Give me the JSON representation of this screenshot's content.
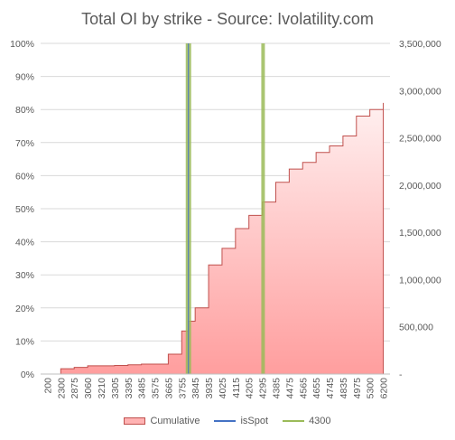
{
  "chart_data": {
    "type": "area",
    "title": "Total OI by strike - Source: Ivolatility.com",
    "y_left_ticks": [
      "0%",
      "10%",
      "20%",
      "30%",
      "40%",
      "50%",
      "60%",
      "70%",
      "80%",
      "90%",
      "100%"
    ],
    "y_right_ticks": [
      "-",
      "500,000",
      "1,000,000",
      "1,500,000",
      "2,000,000",
      "2,500,000",
      "3,000,000",
      "3,500,000"
    ],
    "y_left_lim": [
      0,
      1
    ],
    "y_right_lim": [
      0,
      3500000
    ],
    "x_ticks": [
      "200",
      "2300",
      "2875",
      "3060",
      "3210",
      "3305",
      "3395",
      "3485",
      "3575",
      "3665",
      "3755",
      "3845",
      "3935",
      "4025",
      "4115",
      "4205",
      "4295",
      "4385",
      "4475",
      "4565",
      "4655",
      "4745",
      "4835",
      "4975",
      "5300",
      "6200"
    ],
    "series": [
      {
        "name": "Cumulative",
        "color": "#c0504d",
        "fill": "#ffb3b3",
        "x": [
          "200",
          "2300",
          "2875",
          "3060",
          "3210",
          "3305",
          "3395",
          "3485",
          "3575",
          "3665",
          "3755",
          "3800",
          "3845",
          "3935",
          "4025",
          "4115",
          "4205",
          "4295",
          "4385",
          "4475",
          "4565",
          "4655",
          "4745",
          "4835",
          "4975",
          "5300",
          "6200"
        ],
        "values": [
          0.0,
          0.016,
          0.02,
          0.025,
          0.025,
          0.026,
          0.028,
          0.03,
          0.03,
          0.06,
          0.13,
          0.16,
          0.2,
          0.33,
          0.38,
          0.44,
          0.48,
          0.52,
          0.58,
          0.62,
          0.64,
          0.67,
          0.69,
          0.72,
          0.78,
          0.8,
          0.82
        ]
      },
      {
        "name": "isSpot",
        "color": "#4472c4",
        "x_value": "3800"
      },
      {
        "name": "4300",
        "color": "#9bbb59",
        "x_value": "4300"
      }
    ],
    "legend": [
      "Cumulative",
      "isSpot",
      "4300"
    ],
    "legend_position": "bottom",
    "grid": true
  }
}
